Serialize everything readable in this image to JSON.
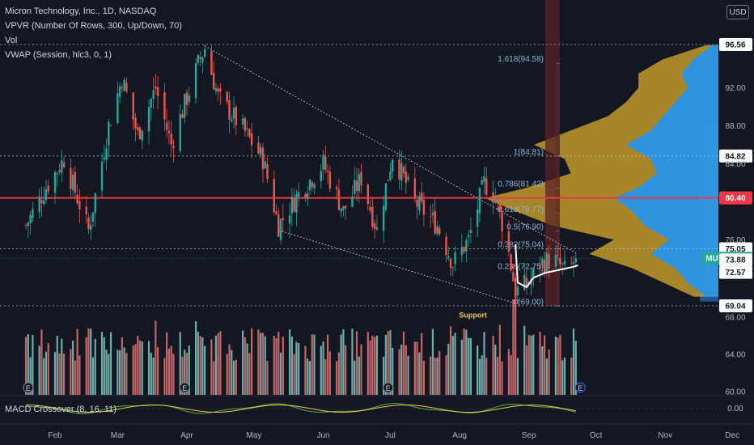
{
  "legend": {
    "symbol": "Micron Technology, Inc., 1D, NASDAQ",
    "vpvr": "VPVR (Number Of Rows, 300, Up/Down, 70)",
    "vol": "Vol",
    "vwap": "VWAP (Session, hlc3, 0, 1)",
    "macd": "MACD Crossover (8, 16, 11)"
  },
  "currency": "USD",
  "colors": {
    "background": "#131722",
    "up": "#26a69a",
    "down": "#ef5350",
    "volume_up": "#80c8c0",
    "volume_down": "#e57373",
    "resistance_line": "#f23645",
    "vpvr_up": "#2196f3",
    "vpvr_down": "#c29a2a",
    "vwap": "#ffffff",
    "fib_text": "#8ab4d6",
    "support_text": "#f6c343"
  },
  "chart_data": {
    "type": "candlestick",
    "x_axis_labels": [
      "Feb",
      "Mar",
      "Apr",
      "May",
      "Jun",
      "Jul",
      "Aug",
      "Sep",
      "Oct",
      "Nov",
      "Dec"
    ],
    "price_axis_labels": [
      "96.56",
      "92.00",
      "88.00",
      "84.82",
      "84.00",
      "80.40",
      "76.00",
      "75.05",
      "74.05",
      "73.88",
      "72.57",
      "69.04",
      "68.00",
      "64.00",
      "60.00"
    ],
    "macd_axis_labels": [
      "0.00"
    ],
    "ylim": [
      60,
      98
    ],
    "highlighted_prices": [
      {
        "label": "96.56",
        "value": 96.56,
        "style": "dotted"
      },
      {
        "label": "84.82",
        "value": 84.82,
        "style": "dotted"
      },
      {
        "label": "80.40",
        "value": 80.4,
        "style": "solid-red"
      },
      {
        "label": "75.05",
        "value": 75.05,
        "style": "dotted"
      },
      {
        "label": "74.05",
        "value": 74.05,
        "style": "current",
        "ticker": "MU"
      },
      {
        "label": "73.88",
        "value": 73.88,
        "style": "none"
      },
      {
        "label": "72.57",
        "value": 72.57,
        "style": "none"
      },
      {
        "label": "69.04",
        "value": 69.04,
        "style": "dotted"
      }
    ],
    "fibonacci": [
      {
        "label": "1.618(94.58)",
        "value": 94.58
      },
      {
        "label": "1(84.81)",
        "value": 84.81
      },
      {
        "label": "0.786(81.42)",
        "value": 81.42
      },
      {
        "label": "0.618(78.77)",
        "value": 78.77
      },
      {
        "label": "0.5(76.90)",
        "value": 76.9
      },
      {
        "label": "0.382(75.04)",
        "value": 75.04
      },
      {
        "label": "0.236(72.75)",
        "value": 72.75
      },
      {
        "label": "0(69.00)",
        "value": 69.0
      }
    ],
    "annotations": [
      {
        "text": "Support",
        "date": "Aug 7",
        "price": 67.8
      }
    ],
    "anchors": [
      {
        "date": "Jan 19",
        "close": 77.5
      },
      {
        "date": "Jan 28",
        "close": 81.5
      },
      {
        "date": "Feb 5",
        "close": 84.5
      },
      {
        "date": "Feb 16",
        "close": 77.0
      },
      {
        "date": "Feb 25",
        "close": 88.0
      },
      {
        "date": "Mar 3",
        "close": 93.0
      },
      {
        "date": "Mar 10",
        "close": 87.0
      },
      {
        "date": "Mar 18",
        "close": 92.0
      },
      {
        "date": "Mar 25",
        "close": 86.0
      },
      {
        "date": "Apr 6",
        "close": 94.5
      },
      {
        "date": "Apr 9",
        "close": 96.2
      },
      {
        "date": "Apr 15",
        "close": 91.0
      },
      {
        "date": "Apr 25",
        "close": 88.0
      },
      {
        "date": "May 5",
        "close": 84.5
      },
      {
        "date": "May 12",
        "close": 77.5
      },
      {
        "date": "May 20",
        "close": 80.5
      },
      {
        "date": "Jun 1",
        "close": 84.0
      },
      {
        "date": "Jun 10",
        "close": 79.0
      },
      {
        "date": "Jun 18",
        "close": 82.5
      },
      {
        "date": "Jun 25",
        "close": 77.0
      },
      {
        "date": "Jul 2",
        "close": 85.0
      },
      {
        "date": "Jul 12",
        "close": 80.0
      },
      {
        "date": "Jul 22",
        "close": 77.5
      },
      {
        "date": "Jul 29",
        "close": 73.5
      },
      {
        "date": "Aug 5",
        "close": 76.0
      },
      {
        "date": "Aug 12",
        "close": 82.0
      },
      {
        "date": "Aug 17",
        "close": 80.5
      },
      {
        "date": "Aug 22",
        "close": 76.0
      },
      {
        "date": "Aug 26",
        "close": 70.5
      },
      {
        "date": "Sep 1",
        "close": 71.5
      },
      {
        "date": "Sep 6",
        "close": 73.5
      },
      {
        "date": "Sep 12",
        "close": 74.0
      },
      {
        "date": "Sep 18",
        "close": 72.5
      },
      {
        "date": "Sep 22",
        "close": 74.05
      }
    ],
    "vpvr_profile": [
      {
        "price": 96.5,
        "up": 0.02,
        "down": 0.02
      },
      {
        "price": 95.0,
        "up": 0.08,
        "down": 0.1
      },
      {
        "price": 93.5,
        "up": 0.12,
        "down": 0.14
      },
      {
        "price": 92.0,
        "up": 0.1,
        "down": 0.16
      },
      {
        "price": 90.5,
        "up": 0.14,
        "down": 0.16
      },
      {
        "price": 89.0,
        "up": 0.18,
        "down": 0.18
      },
      {
        "price": 87.5,
        "up": 0.22,
        "down": 0.26
      },
      {
        "price": 86.0,
        "up": 0.3,
        "down": 0.3
      },
      {
        "price": 84.5,
        "up": 0.22,
        "down": 0.28
      },
      {
        "price": 83.0,
        "up": 0.2,
        "down": 0.28
      },
      {
        "price": 81.5,
        "up": 0.26,
        "down": 0.36
      },
      {
        "price": 80.4,
        "up": 0.34,
        "down": 0.42
      },
      {
        "price": 79.0,
        "up": 0.28,
        "down": 0.38
      },
      {
        "price": 77.5,
        "up": 0.24,
        "down": 0.3
      },
      {
        "price": 76.0,
        "up": 0.16,
        "down": 0.18
      },
      {
        "price": 74.5,
        "up": 0.22,
        "down": 0.2
      },
      {
        "price": 73.0,
        "up": 0.14,
        "down": 0.14
      },
      {
        "price": 71.5,
        "up": 0.1,
        "down": 0.08
      },
      {
        "price": 70.0,
        "up": 0.04,
        "down": 0.04
      }
    ]
  }
}
